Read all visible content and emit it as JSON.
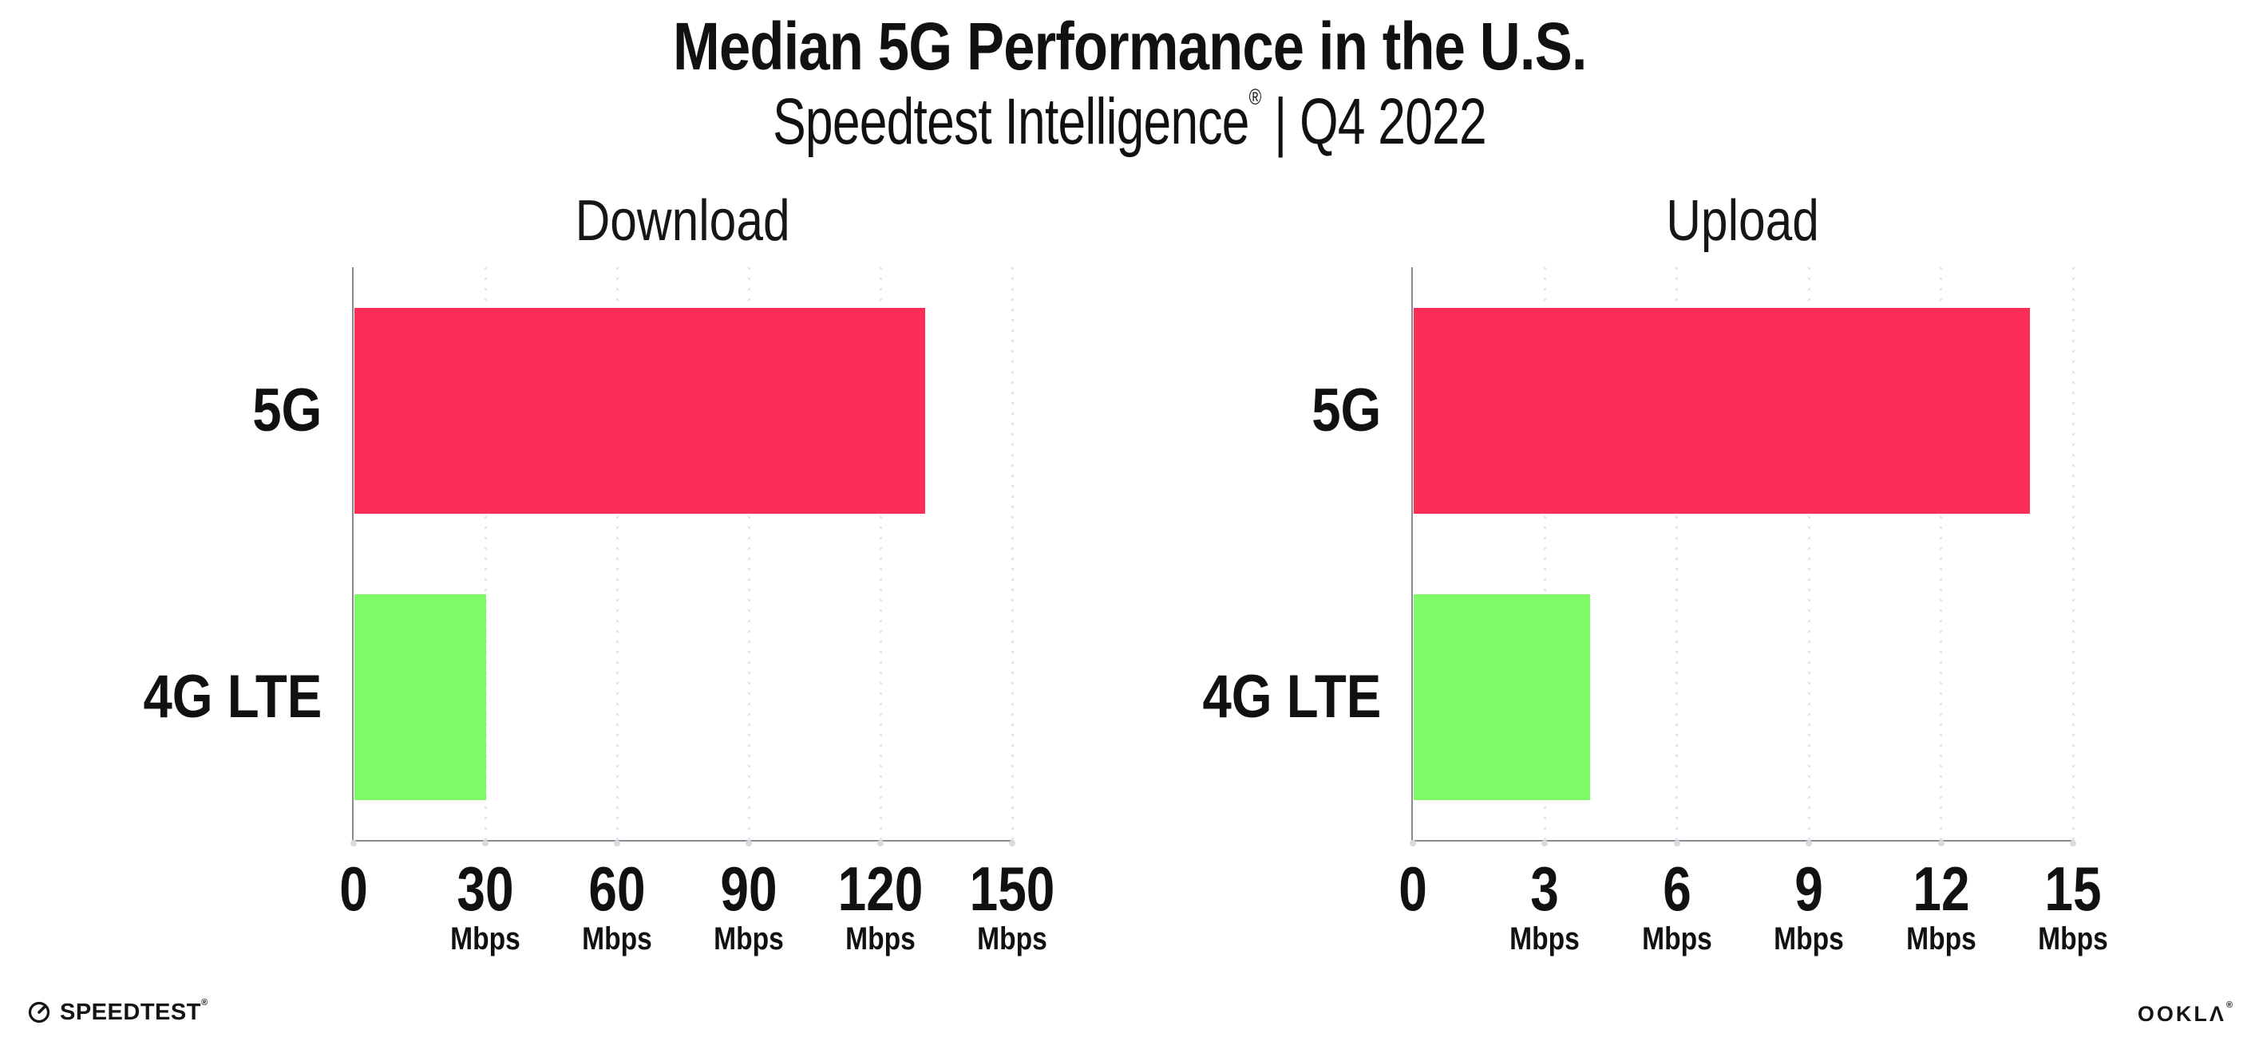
{
  "header": {
    "title": "Median 5G Performance in the U.S.",
    "subtitle_brand": "Speedtest Intelligence",
    "subtitle_reg": "®",
    "subtitle_rest": " | Q4 2022"
  },
  "chart_data": [
    {
      "type": "bar",
      "orientation": "horizontal",
      "title": "Download",
      "categories": [
        "5G",
        "4G LTE"
      ],
      "values": [
        130,
        30
      ],
      "unit": "Mbps",
      "xlim": [
        0,
        150
      ],
      "xticks": [
        0,
        30,
        60,
        90,
        120,
        150
      ],
      "tick_unit_label": "Mbps",
      "bar_colors": [
        "#FC2D56",
        "#7DFA66"
      ],
      "grid": "dotted-vertical",
      "legend": "none"
    },
    {
      "type": "bar",
      "orientation": "horizontal",
      "title": "Upload",
      "categories": [
        "5G",
        "4G LTE"
      ],
      "values": [
        14,
        4
      ],
      "unit": "Mbps",
      "xlim": [
        0,
        15
      ],
      "xticks": [
        0,
        3,
        6,
        9,
        12,
        15
      ],
      "tick_unit_label": "Mbps",
      "bar_colors": [
        "#FC2D56",
        "#7DFA66"
      ],
      "grid": "dotted-vertical",
      "legend": "none"
    }
  ],
  "footer": {
    "speedtest_text": "SPEEDTEST",
    "speedtest_reg": "®",
    "ookla_text": "OOKLA",
    "ookla_reg": "®"
  },
  "colors": {
    "bar_5g": "#FC2D56",
    "bar_4g_lte": "#7DFA66",
    "axis": "#8A8A90",
    "gridline": "#E4E4EE",
    "tick_dot": "#D9D9E3",
    "text": "#111111",
    "background": "#FFFFFF"
  }
}
